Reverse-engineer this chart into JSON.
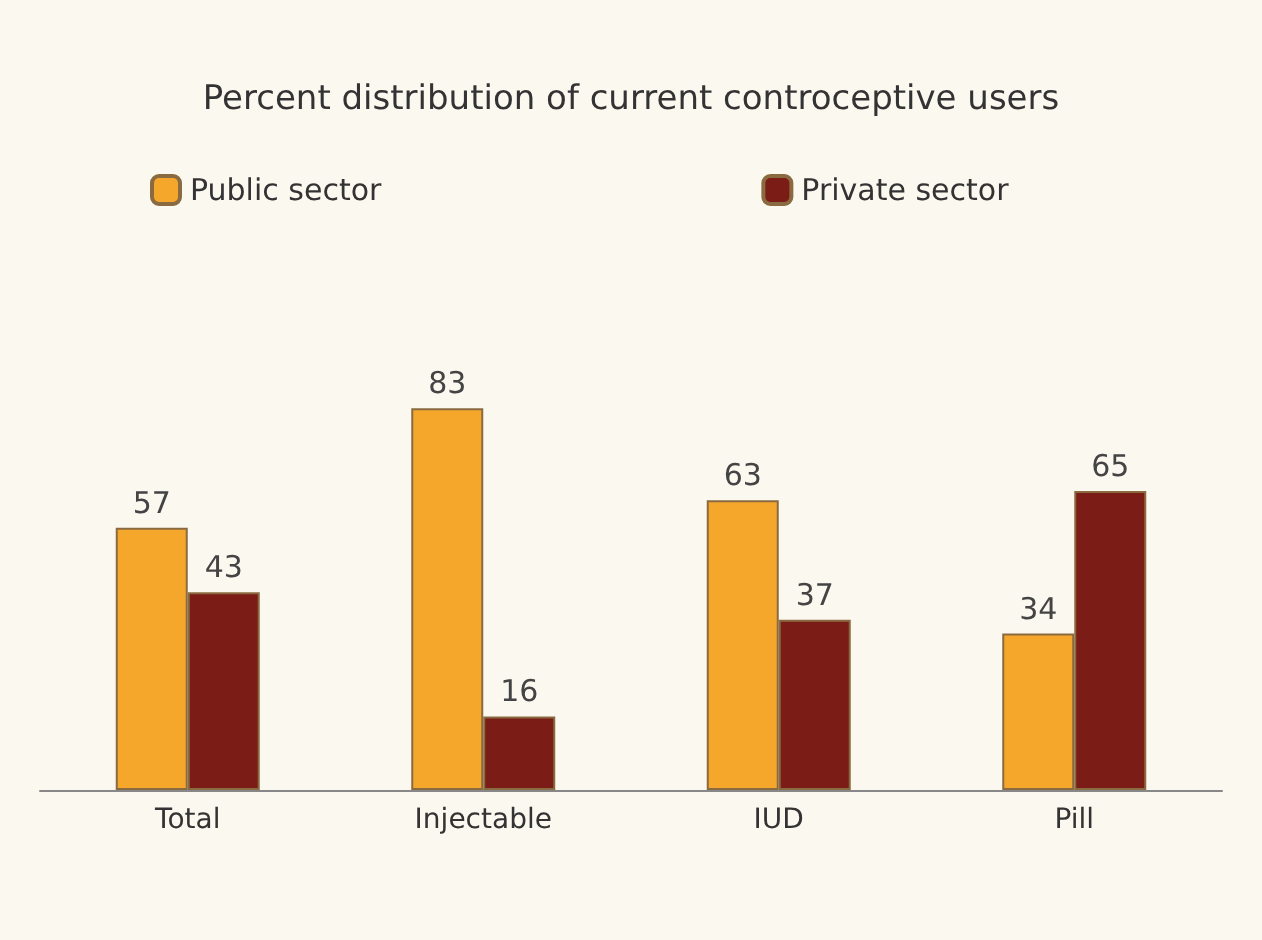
{
  "chart_data": {
    "type": "bar",
    "title": "Percent distribution of current controceptive users",
    "categories": [
      "Total",
      "Injectable",
      "IUD",
      "Pill"
    ],
    "series": [
      {
        "name": "Public sector",
        "color": "#f4a72a",
        "values": [
          57,
          83,
          63,
          34
        ]
      },
      {
        "name": "Private sector",
        "color": "#7b1c16",
        "values": [
          43,
          16,
          37,
          65
        ]
      }
    ],
    "data_labels": true,
    "legend": "top"
  }
}
